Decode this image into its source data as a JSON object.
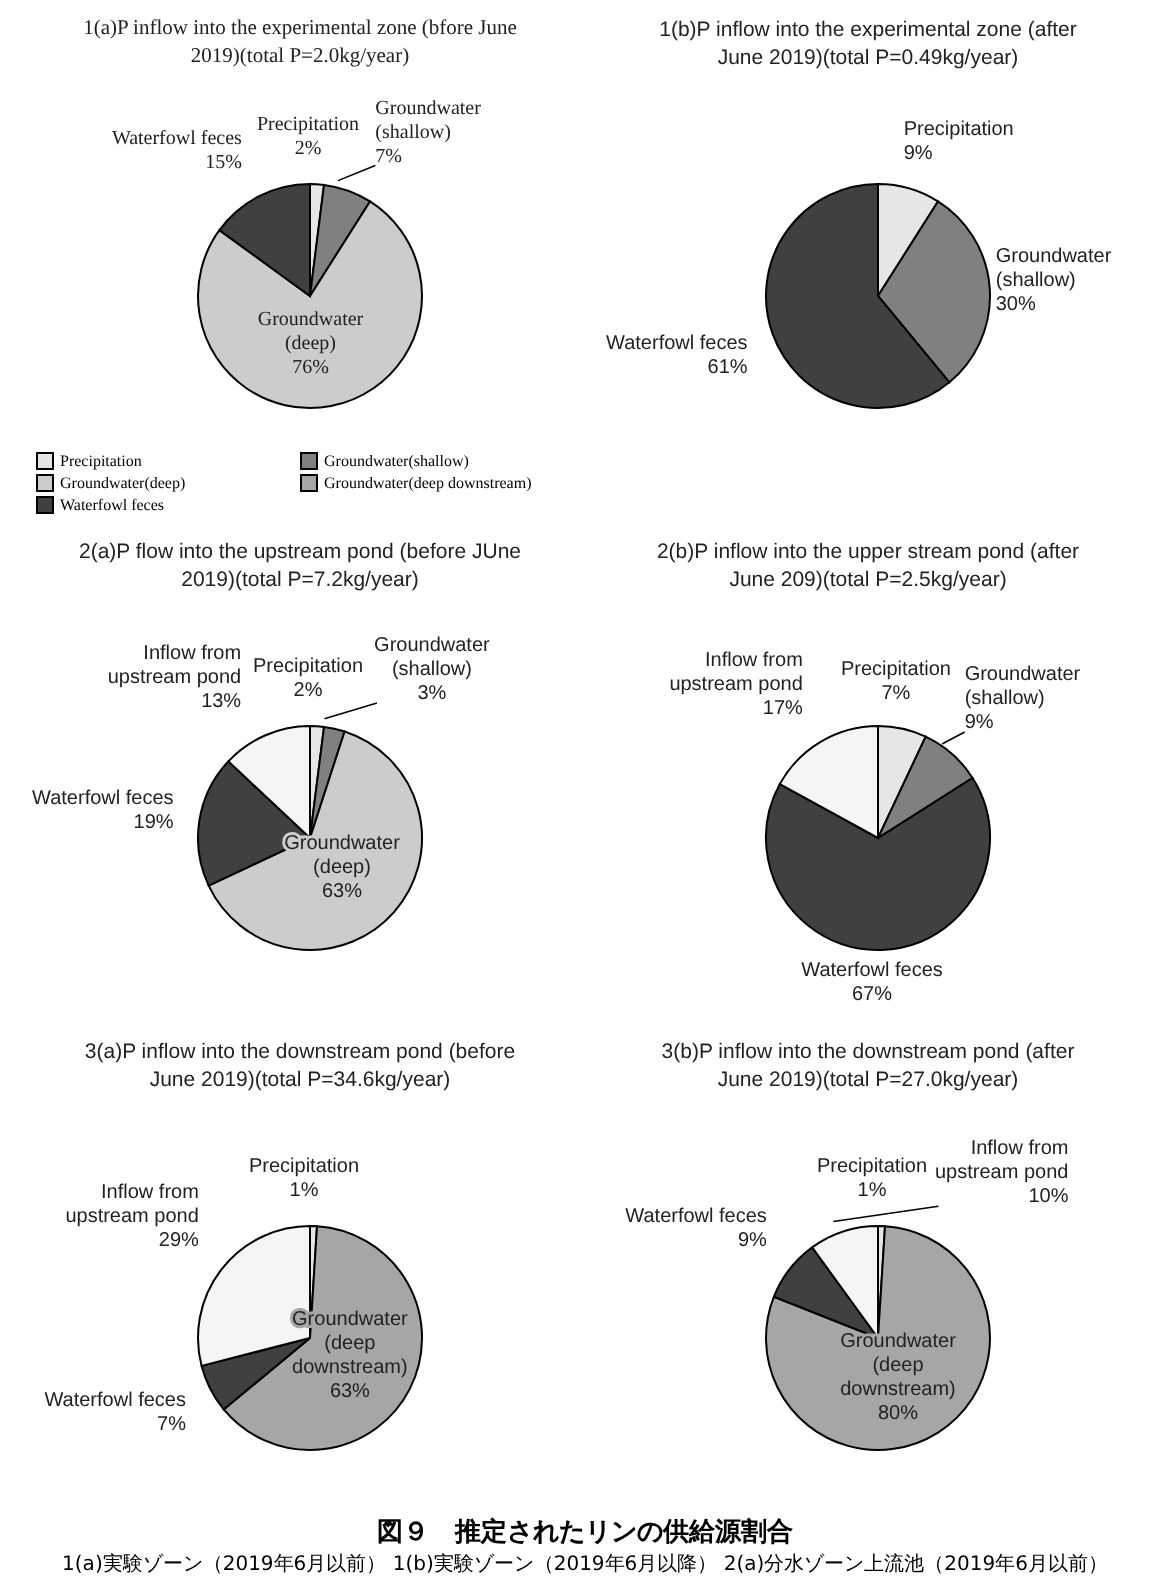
{
  "chart_data": [
    {
      "type": "pie",
      "title": "1(a)P inflow into the experimental zone (bfore June 2019)(total P=2.0kg/year)",
      "categories": [
        "Precipitation",
        "Groundwater(shallow)",
        "Groundwater(deep)",
        "Groundwater(deep downstream)",
        "Waterfowl feces"
      ],
      "values": [
        2,
        7,
        76,
        0,
        15
      ],
      "value_labels": [
        "2%",
        "7%",
        "76%",
        null,
        "15%"
      ],
      "colors": [
        "#e6e6e6",
        "#808080",
        "#cccccc",
        "#a6a6a6",
        "#404040"
      ],
      "legend": "bottom"
    },
    {
      "type": "pie",
      "title": "1(b)P inflow into the experimental zone (after June 2019)(total P=0.49kg/year)",
      "categories": [
        "Precipitation",
        "Groundwater (shallow)",
        "Waterfowl feces"
      ],
      "values": [
        9,
        30,
        61
      ],
      "value_labels": [
        "9%",
        "30%",
        "61%"
      ],
      "colors": [
        "#e6e6e6",
        "#808080",
        "#404040"
      ]
    },
    {
      "type": "pie",
      "title": "2(a)P flow into the upstream pond (before JUne 2019)(total P=7.2kg/year)",
      "categories": [
        "Precipitation",
        "Groundwater (shallow)",
        "Groundwater (deep)",
        "Waterfowl feces",
        "Inflow from upstream pond"
      ],
      "values": [
        2,
        3,
        63,
        19,
        13
      ],
      "value_labels": [
        "2%",
        "3%",
        "63%",
        "19%",
        "13%"
      ],
      "colors": [
        "#e6e6e6",
        "#808080",
        "#cccccc",
        "#404040",
        "#f5f5f5"
      ]
    },
    {
      "type": "pie",
      "title": "2(b)P inflow into the upper stream pond (after June 209)(total P=2.5kg/year)",
      "categories": [
        "Precipitation",
        "Groundwater (shallow)",
        "Waterfowl feces",
        "Inflow from upstream pond"
      ],
      "values": [
        7,
        9,
        67,
        17
      ],
      "value_labels": [
        "7%",
        "9%",
        "67%",
        "17%"
      ],
      "colors": [
        "#e6e6e6",
        "#808080",
        "#404040",
        "#f5f5f5"
      ]
    },
    {
      "type": "pie",
      "title": "3(a)P inflow into the downstream pond (before June 2019)(total P=34.6kg/year)",
      "categories": [
        "Precipitation",
        "Groundwater (deep downstream)",
        "Waterfowl feces",
        "Inflow from upstream pond"
      ],
      "values": [
        1,
        63,
        7,
        29
      ],
      "value_labels": [
        "1%",
        "63%",
        "7%",
        "29%"
      ],
      "colors": [
        "#e6e6e6",
        "#a6a6a6",
        "#404040",
        "#f5f5f5"
      ]
    },
    {
      "type": "pie",
      "title": "3(b)P inflow into the downstream pond (after June 2019)(total P=27.0kg/year)",
      "categories": [
        "Precipitation",
        "Groundwater (deep downstream)",
        "Waterfowl feces",
        "Inflow from upstream pond"
      ],
      "values": [
        1,
        80,
        9,
        10
      ],
      "value_labels": [
        "1%",
        "80%",
        "9%",
        "10%"
      ],
      "colors": [
        "#e6e6e6",
        "#a6a6a6",
        "#404040",
        "#f5f5f5"
      ],
      "annotations": [
        "図９　推定されたリンの供給源割合",
        "1(a)実験ゾーン（2019年6月以前） 1(b)実験ゾーン（2019年6月以降） 2(a)分水ゾーン上流池（2019年6月以前）"
      ]
    }
  ]
}
